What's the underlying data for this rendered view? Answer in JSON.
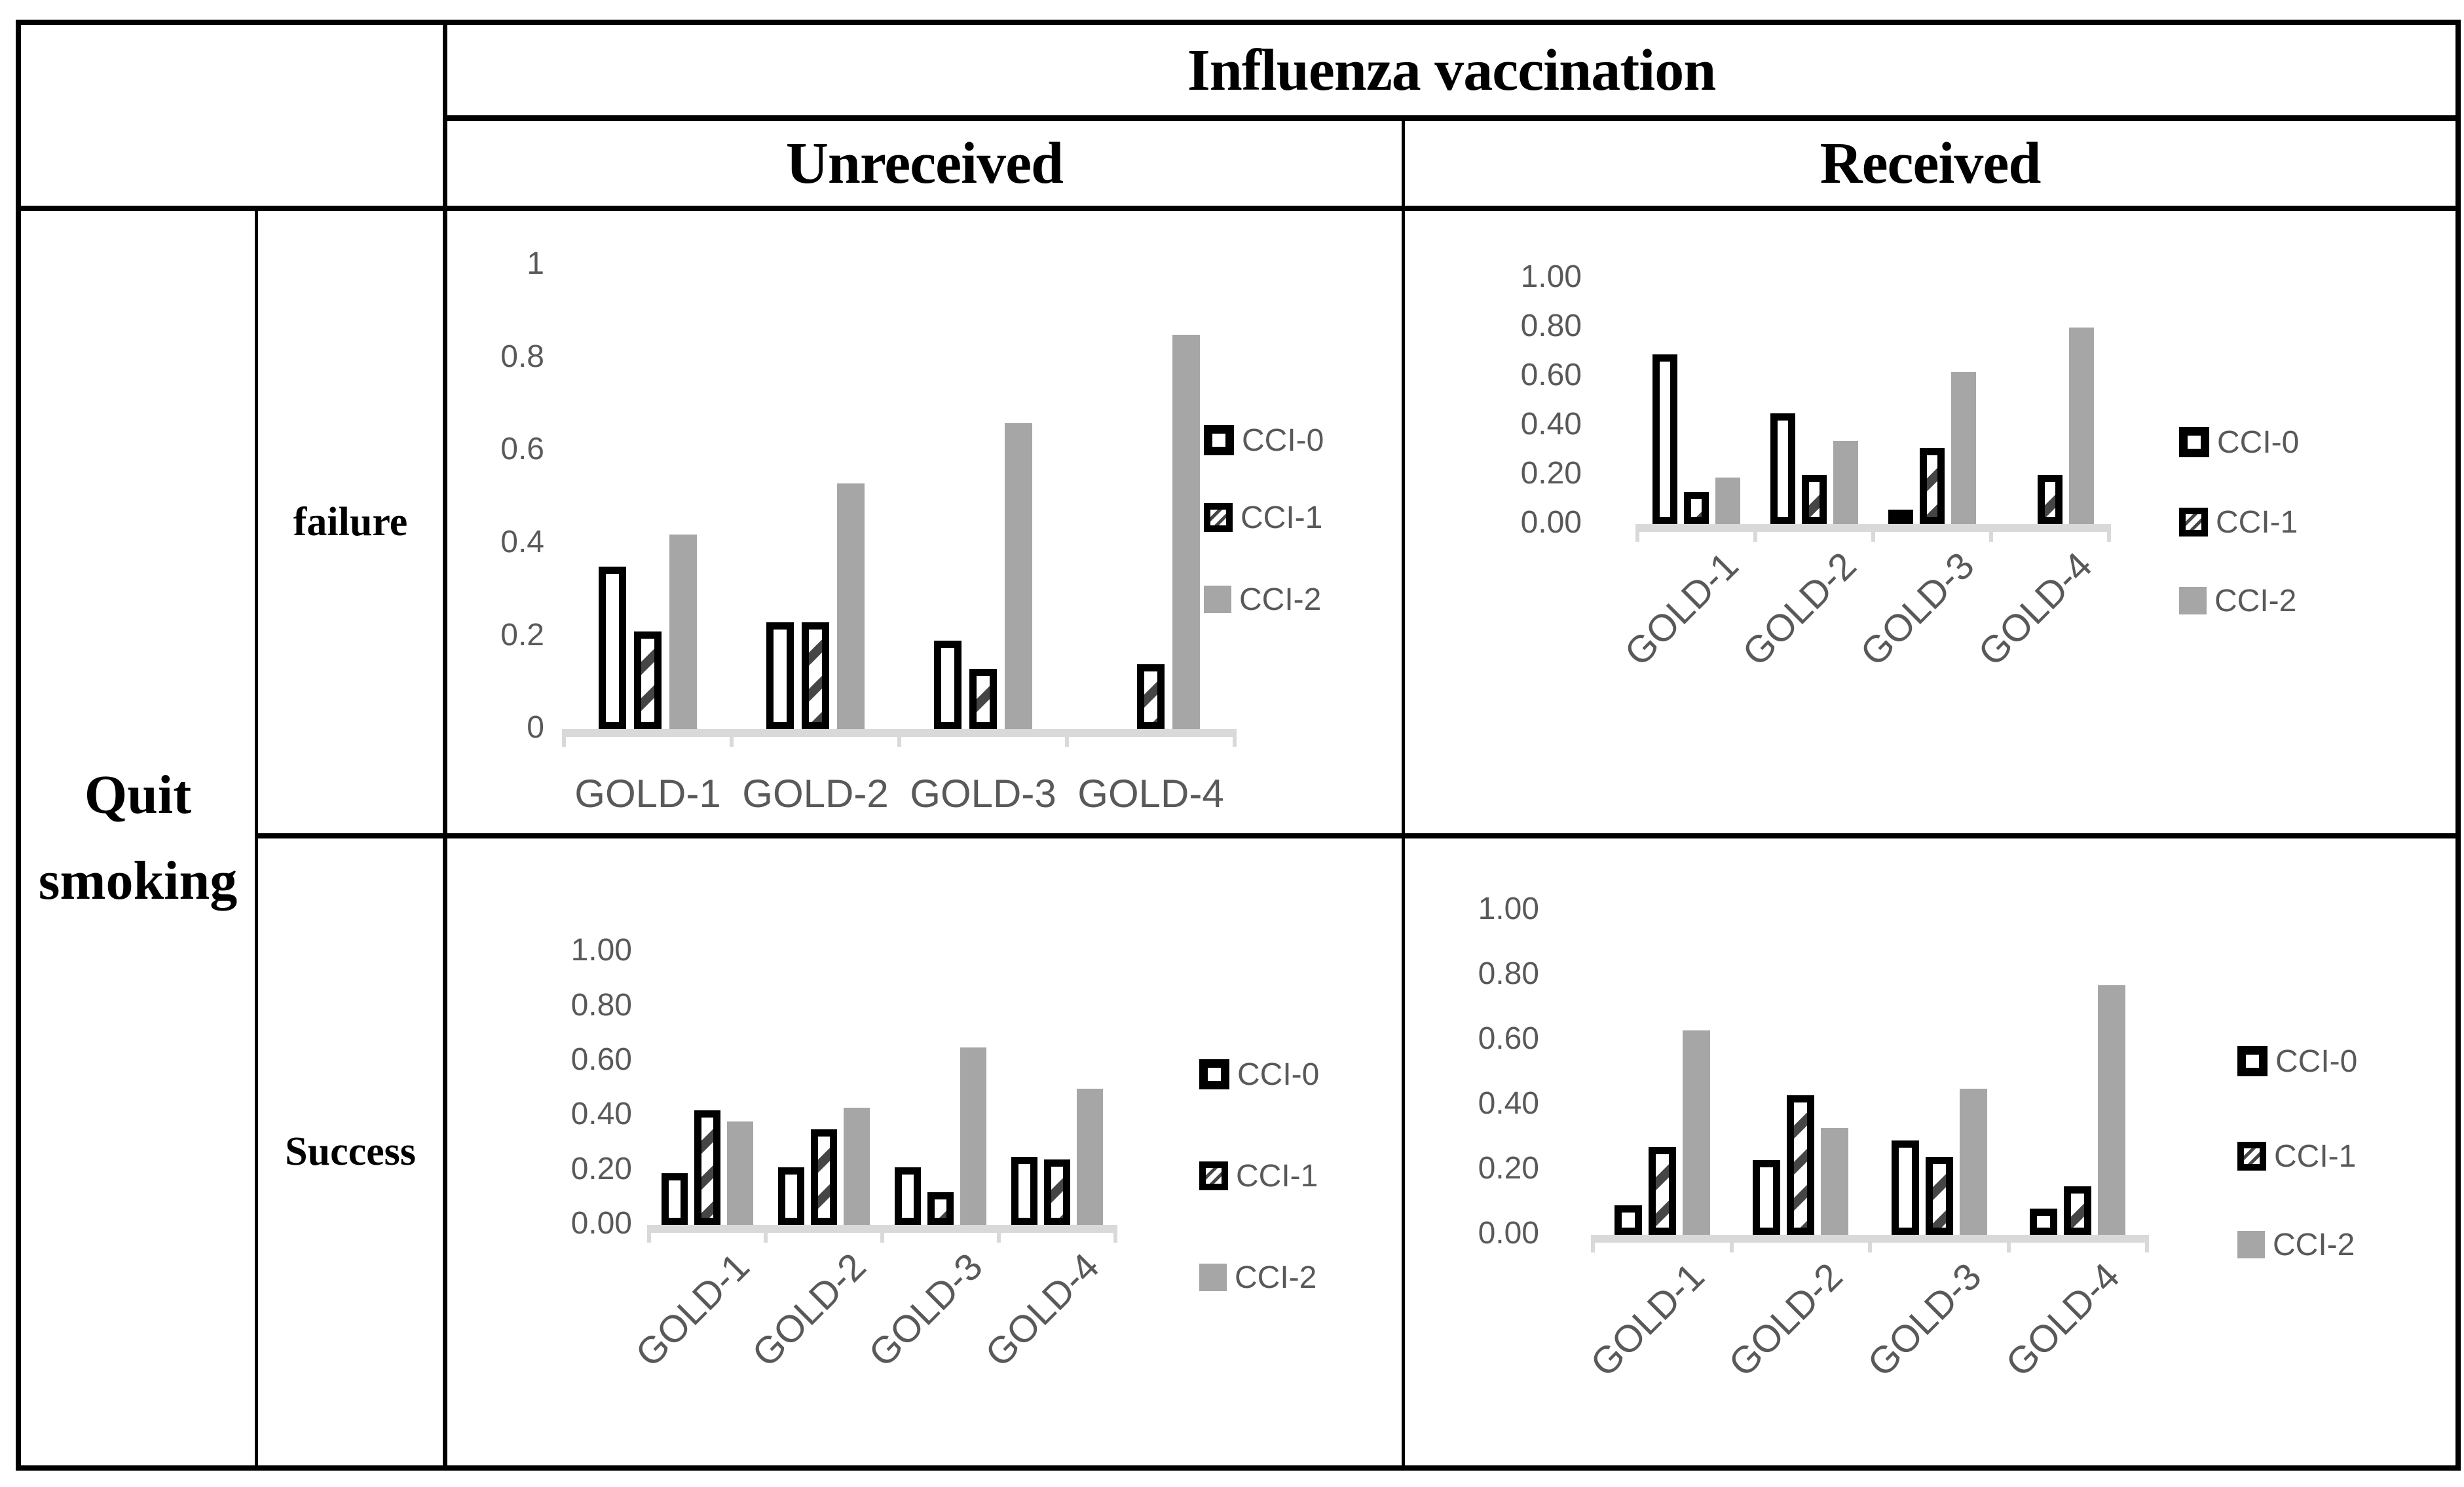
{
  "table": {
    "col_group_header": "Influenza vaccination",
    "col_headers": [
      "Unreceived",
      "Received"
    ],
    "row_group_header": "Quit smoking",
    "row_headers": [
      "failure",
      "Success"
    ]
  },
  "legend_labels": [
    "CCI-0",
    "CCI-1",
    "CCI-2"
  ],
  "colors": {
    "table_border": "#000000",
    "header_text": "#000000",
    "axis_text": "#595959",
    "axis_line": "#d9d9d9",
    "cci0_fill": "#ffffff",
    "cci0_border": "#000000",
    "cci1_fill": "#ffffff",
    "cci1_hatch": "#454545",
    "cci2_fill": "#a6a6a6"
  },
  "chart_data": [
    {
      "id": "unreceived-failure",
      "type": "bar",
      "vaccination": "Unreceived",
      "quit_smoking": "failure",
      "categories": [
        "GOLD-1",
        "GOLD-2",
        "GOLD-3",
        "GOLD-4"
      ],
      "series": [
        {
          "name": "CCI-0",
          "values": [
            0.35,
            0.23,
            0.19,
            0
          ]
        },
        {
          "name": "CCI-1",
          "values": [
            0.21,
            0.23,
            0.13,
            0.14
          ]
        },
        {
          "name": "CCI-2",
          "values": [
            0.42,
            0.53,
            0.66,
            0.85
          ]
        }
      ],
      "ylim": [
        0,
        1
      ],
      "ytick_labels": [
        "1",
        "0.8",
        "0.6",
        "0.4",
        "0.2",
        "0"
      ],
      "x_labels_rotated": false,
      "legend_position": "right",
      "grid": false
    },
    {
      "id": "received-failure",
      "type": "bar",
      "vaccination": "Received",
      "quit_smoking": "failure",
      "categories": [
        "GOLD-1",
        "GOLD-2",
        "GOLD-3",
        "GOLD-4"
      ],
      "series": [
        {
          "name": "CCI-0",
          "values": [
            0.69,
            0.45,
            0.06,
            0
          ]
        },
        {
          "name": "CCI-1",
          "values": [
            0.13,
            0.2,
            0.31,
            0.2
          ]
        },
        {
          "name": "CCI-2",
          "values": [
            0.19,
            0.34,
            0.62,
            0.8
          ]
        }
      ],
      "ylim": [
        0,
        1
      ],
      "ytick_labels": [
        "1.00",
        "0.80",
        "0.60",
        "0.40",
        "0.20",
        "0.00"
      ],
      "x_labels_rotated": true,
      "legend_position": "right",
      "grid": false
    },
    {
      "id": "unreceived-success",
      "type": "bar",
      "vaccination": "Unreceived",
      "quit_smoking": "Success",
      "categories": [
        "GOLD-1",
        "GOLD-2",
        "GOLD-3",
        "GOLD-4"
      ],
      "series": [
        {
          "name": "CCI-0",
          "values": [
            0.19,
            0.21,
            0.21,
            0.25
          ]
        },
        {
          "name": "CCI-1",
          "values": [
            0.42,
            0.35,
            0.12,
            0.24
          ]
        },
        {
          "name": "CCI-2",
          "values": [
            0.38,
            0.43,
            0.65,
            0.5
          ]
        }
      ],
      "ylim": [
        0,
        1
      ],
      "ytick_labels": [
        "1.00",
        "0.80",
        "0.60",
        "0.40",
        "0.20",
        "0.00"
      ],
      "x_labels_rotated": true,
      "legend_position": "right",
      "grid": false
    },
    {
      "id": "received-success",
      "type": "bar",
      "vaccination": "Received",
      "quit_smoking": "Success",
      "categories": [
        "GOLD-1",
        "GOLD-2",
        "GOLD-3",
        "GOLD-4"
      ],
      "series": [
        {
          "name": "CCI-0",
          "values": [
            0.09,
            0.23,
            0.29,
            0.08
          ]
        },
        {
          "name": "CCI-1",
          "values": [
            0.27,
            0.43,
            0.24,
            0.15
          ]
        },
        {
          "name": "CCI-2",
          "values": [
            0.63,
            0.33,
            0.45,
            0.77
          ]
        }
      ],
      "ylim": [
        0,
        1
      ],
      "ytick_labels": [
        "1.00",
        "0.80",
        "0.60",
        "0.40",
        "0.20",
        "0.00"
      ],
      "x_labels_rotated": true,
      "legend_position": "right",
      "grid": false
    }
  ]
}
